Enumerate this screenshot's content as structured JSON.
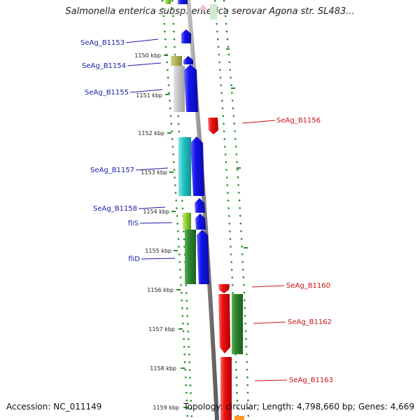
{
  "title": "Salmonella enterica subsp. enterica serovar Agona str. SL483...",
  "footer": {
    "accession": "Accession: NC_011149",
    "summary": "Topology: circular; Length: 4,798,660 bp; Genes: 4,669"
  },
  "colors": {
    "forward_label": "#1a1aaa",
    "reverse_label": "#cc1111",
    "forward_gene": "#1010ee",
    "reverse_gene": "#ee1111",
    "tick": "#2e8b2e",
    "backbone": "#8a8a8a"
  },
  "kbp_ticks": [
    "1150 kbp",
    "1151 kbp",
    "1152 kbp",
    "1153 kbp",
    "1154 kbp",
    "1155 kbp",
    "1156 kbp",
    "1157 kbp",
    "1158 kbp",
    "1159 kbp"
  ],
  "forward_labels": [
    "SeAg_B1153",
    "SeAg_B1154",
    "SeAg_B1155",
    "SeAg_B1157",
    "SeAg_B1158",
    "fliS",
    "fliD"
  ],
  "reverse_labels": [
    "SeAg_B1156",
    "SeAg_B1160",
    "SeAg_B1162",
    "SeAg_B1163"
  ]
}
